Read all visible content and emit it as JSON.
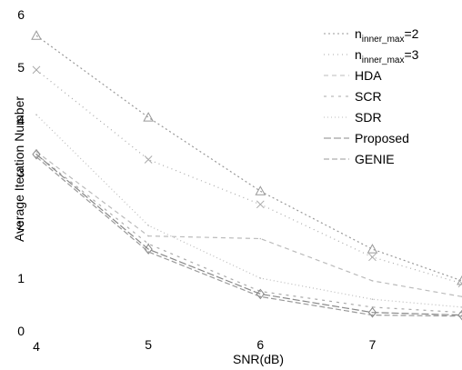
{
  "chart_data": {
    "type": "line",
    "xlabel": "SNR(dB)",
    "ylabel": "Average Iteration Number",
    "xlim": [
      4,
      7.8
    ],
    "ylim": [
      0,
      6
    ],
    "xticks": [
      "4",
      "5",
      "6",
      "7"
    ],
    "yticks": [
      "0",
      "1",
      "2",
      "3",
      "4",
      "5",
      "6"
    ],
    "grid": false,
    "legend_position": "top-right",
    "series": [
      {
        "name": "n_{inner_max}=2",
        "label_main": "n",
        "label_sub": "inner_max",
        "label_tail": "=2",
        "x": [
          4,
          5,
          6,
          7,
          7.8
        ],
        "y": [
          5.6,
          4.05,
          2.65,
          1.55,
          0.95
        ],
        "dash": "2,3",
        "color": "#999999",
        "marker": "triangle"
      },
      {
        "name": "n_{inner_max}=3",
        "label_main": "n",
        "label_sub": "inner_max",
        "label_tail": "=3",
        "x": [
          4,
          5,
          6,
          7,
          7.8
        ],
        "y": [
          4.95,
          3.25,
          2.4,
          1.4,
          0.9
        ],
        "dash": "1,4",
        "color": "#aaaaaa",
        "marker": "x"
      },
      {
        "name": "HDA",
        "label_main": "HDA",
        "x": [
          4,
          5,
          6,
          7,
          7.8
        ],
        "y": [
          3.4,
          1.8,
          1.75,
          0.95,
          0.65
        ],
        "dash": "5,4",
        "color": "#bbbbbb",
        "marker": "none"
      },
      {
        "name": "SCR",
        "label_main": "SCR",
        "x": [
          4,
          5,
          6,
          7,
          7.8
        ],
        "y": [
          3.35,
          1.65,
          0.75,
          0.45,
          0.35
        ],
        "dash": "3,5",
        "color": "#aaaaaa",
        "marker": "none"
      },
      {
        "name": "SDR",
        "label_main": "SDR",
        "x": [
          4,
          5,
          6,
          7,
          7.8
        ],
        "y": [
          4.1,
          2.0,
          1.0,
          0.6,
          0.45
        ],
        "dash": "1,3",
        "color": "#bbbbbb",
        "marker": "none"
      },
      {
        "name": "Proposed",
        "label_main": "Proposed",
        "x": [
          4,
          5,
          6,
          7,
          7.8
        ],
        "y": [
          3.35,
          1.55,
          0.7,
          0.35,
          0.3
        ],
        "dash": "8,3",
        "color": "#888888",
        "marker": "diamond"
      },
      {
        "name": "GENIE",
        "label_main": "GENIE",
        "x": [
          4,
          5,
          6,
          7,
          7.8
        ],
        "y": [
          3.3,
          1.5,
          0.65,
          0.3,
          0.28
        ],
        "dash": "6,3",
        "color": "#999999",
        "marker": "none"
      }
    ]
  }
}
